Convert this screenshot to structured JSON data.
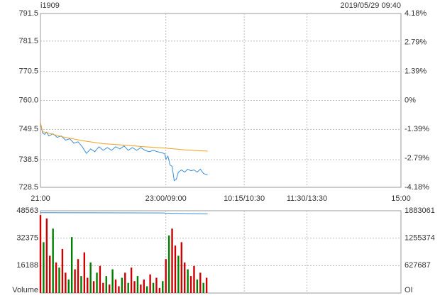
{
  "chart_data": [
    {
      "type": "line",
      "title": "i1909",
      "subtitle": "2019/05/29 09:40",
      "xlim": [
        0,
        345
      ],
      "xticks": [
        {
          "value": 0,
          "label": "21:00"
        },
        {
          "value": 120,
          "label": "23:00/09:00"
        },
        {
          "value": 195,
          "label": "10:15/10:30"
        },
        {
          "value": 255,
          "label": "11:30/13:30"
        },
        {
          "value": 345,
          "label": "15:00"
        }
      ],
      "ylim": [
        728.5,
        791.5
      ],
      "yticks": [
        791.5,
        781.5,
        770.5,
        {
          "value": 760,
          "label": "760.0"
        },
        749.5,
        738.5,
        728.5
      ],
      "y2lim": [
        -4.18,
        4.18
      ],
      "y2ticks": [
        {
          "value": 4.18,
          "label": "4.18%"
        },
        {
          "value": 2.79,
          "label": "2.79%"
        },
        {
          "value": 1.39,
          "label": "1.39%"
        },
        {
          "value": 0,
          "label": "0%"
        },
        {
          "value": -1.39,
          "label": "-1.39%"
        },
        {
          "value": -2.79,
          "label": "-2.79%"
        },
        {
          "value": -4.18,
          "label": "-4.18%"
        }
      ],
      "up_color": "#cc0000",
      "down_color": "#008000",
      "flat_color": "#000000",
      "grid": true,
      "series": [
        {
          "color": "#3a8fd8",
          "x": [
            0,
            2,
            4,
            6,
            8,
            12,
            16,
            20,
            24,
            28,
            32,
            36,
            40,
            44,
            48,
            52,
            56,
            60,
            64,
            68,
            72,
            76,
            80,
            84,
            88,
            92,
            96,
            100,
            104,
            108,
            112,
            116,
            119,
            120,
            122,
            124,
            126,
            128,
            130,
            132,
            135,
            138,
            141,
            144,
            147,
            150,
            153,
            156,
            160
          ],
          "values": [
            751.9,
            748.2,
            747.7,
            748.5,
            747.1,
            747.9,
            746.6,
            747.1,
            745.6,
            746.1,
            744.5,
            745.0,
            743.2,
            740.8,
            742.4,
            741.4,
            743.2,
            741.9,
            742.9,
            741.9,
            743.2,
            742.4,
            743.5,
            741.9,
            742.9,
            741.9,
            742.9,
            741.9,
            741.4,
            741.9,
            741.4,
            741.1,
            740.6,
            738.7,
            739.8,
            736.6,
            736.1,
            730.9,
            731.4,
            734.0,
            734.8,
            734.0,
            735.1,
            734.5,
            734.8,
            734.0,
            735.1,
            733.5,
            733.0
          ]
        },
        {
          "color": "#f0a020",
          "x": [
            0,
            2,
            20,
            40,
            60,
            80,
            100,
            120,
            140,
            160
          ],
          "values": [
            751.9,
            748.7,
            746.9,
            745.4,
            744.3,
            743.8,
            743.2,
            742.7,
            742.0,
            741.6
          ]
        }
      ]
    },
    {
      "type": "bar",
      "xlim": [
        0,
        345
      ],
      "ylim": [
        0,
        48563
      ],
      "yticks": [
        {
          "value": 0,
          "label": "Volume"
        },
        16188,
        32375,
        48563
      ],
      "y2lim": [
        0,
        1883061
      ],
      "y2ticks": [
        {
          "value": 0,
          "label": "OI"
        },
        627687,
        1255374,
        1883061
      ],
      "grid": true,
      "x": [
        0,
        3,
        6,
        9,
        12,
        15,
        18,
        21,
        24,
        27,
        30,
        33,
        36,
        39,
        42,
        45,
        48,
        51,
        54,
        57,
        60,
        63,
        66,
        69,
        72,
        75,
        78,
        81,
        84,
        87,
        90,
        93,
        96,
        99,
        102,
        105,
        108,
        111,
        114,
        117,
        120,
        123,
        126,
        129,
        132,
        135,
        138,
        141,
        144,
        147,
        150,
        153,
        156,
        159
      ],
      "series": [
        {
          "name": "Volume",
          "values": [
            46000,
            30000,
            44000,
            22000,
            38000,
            18000,
            15000,
            26000,
            12000,
            8000,
            33000,
            14000,
            20000,
            10000,
            24000,
            9000,
            18000,
            7000,
            12000,
            16000,
            6000,
            10000,
            5000,
            14000,
            8000,
            4000,
            9000,
            12000,
            6000,
            15000,
            7000,
            10000,
            5000,
            8000,
            4000,
            11000,
            6000,
            9000,
            3000,
            7000,
            20000,
            34000,
            38000,
            28000,
            22000,
            30000,
            18000,
            14000,
            10000,
            16000,
            8000,
            12000,
            6000,
            9000
          ],
          "colors": [
            "#cc0000",
            "#008000",
            "#cc0000",
            "#cc0000",
            "#008000",
            "#cc0000",
            "#008000",
            "#cc0000",
            "#cc0000",
            "#008000",
            "#008000",
            "#cc0000",
            "#cc0000",
            "#008000",
            "#cc0000",
            "#cc0000",
            "#008000",
            "#cc0000",
            "#008000",
            "#cc0000",
            "#cc0000",
            "#008000",
            "#cc0000",
            "#008000",
            "#cc0000",
            "#cc0000",
            "#008000",
            "#cc0000",
            "#008000",
            "#cc0000",
            "#cc0000",
            "#008000",
            "#cc0000",
            "#cc0000",
            "#008000",
            "#cc0000",
            "#008000",
            "#cc0000",
            "#cc0000",
            "#008000",
            "#cc0000",
            "#008000",
            "#cc0000",
            "#cc0000",
            "#008000",
            "#cc0000",
            "#cc0000",
            "#008000",
            "#cc0000",
            "#cc0000",
            "#008000",
            "#cc0000",
            "#008000",
            "#cc0000"
          ]
        },
        {
          "name": "OI",
          "axis": "y2",
          "color": "#3a8fd8",
          "x": [
            0,
            40,
            80,
            118,
            120,
            140,
            160
          ],
          "values": [
            1838000,
            1836000,
            1834000,
            1832000,
            1826000,
            1818000,
            1810000
          ]
        }
      ]
    }
  ]
}
